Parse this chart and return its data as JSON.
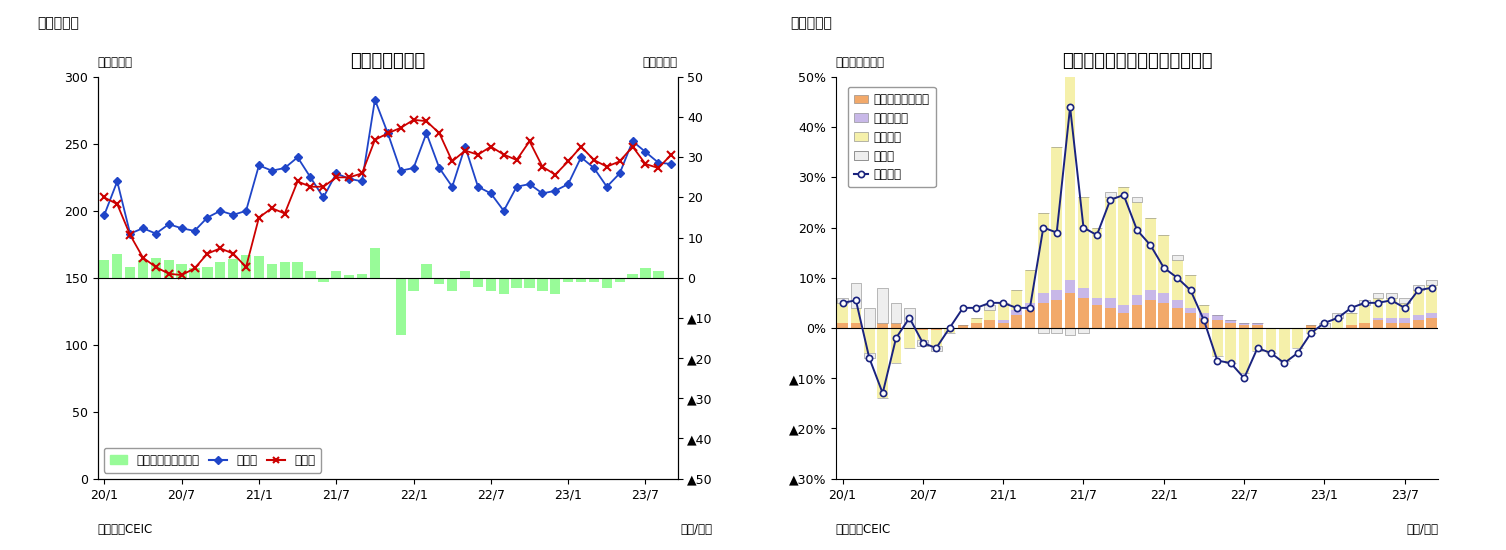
{
  "fig5_title": "タイの貿易収支",
  "fig5_label": "（図表５）",
  "fig5_ylabel_left": "（億ドル）",
  "fig5_ylabel_right": "（億ドル）",
  "fig5_source": "（資料）CEIC",
  "fig5_xlabel": "（年/月）",
  "fig6_title": "タイ　輸出の伸び率（品目別）",
  "fig6_label": "（図表６）",
  "fig6_ylabel_left": "（前年同月比）",
  "fig6_source": "（資料）CEIC",
  "fig6_xlabel": "（年/月）",
  "x_labels": [
    "20/1",
    "20/7",
    "21/1",
    "21/7",
    "22/1",
    "22/7",
    "23/1",
    "23/7"
  ],
  "x_tick_positions": [
    0,
    6,
    12,
    18,
    24,
    30,
    36,
    42
  ],
  "export_values": [
    197,
    222,
    183,
    187,
    183,
    190,
    187,
    185,
    195,
    200,
    197,
    200,
    234,
    230,
    232,
    240,
    225,
    210,
    228,
    224,
    222,
    283,
    258,
    230,
    232,
    258,
    232,
    218,
    248,
    218,
    213,
    200,
    218,
    220,
    213,
    215,
    220,
    240,
    232,
    218,
    228,
    252,
    244,
    236,
    235
  ],
  "import_values": [
    210,
    205,
    182,
    165,
    158,
    153,
    152,
    157,
    168,
    172,
    168,
    158,
    195,
    202,
    198,
    222,
    218,
    218,
    225,
    225,
    228,
    253,
    258,
    262,
    268,
    267,
    258,
    237,
    245,
    242,
    248,
    242,
    238,
    252,
    233,
    227,
    237,
    248,
    238,
    233,
    237,
    248,
    235,
    232,
    242
  ],
  "trade_balance_bars": [
    13,
    18,
    8,
    13,
    15,
    13,
    10,
    7,
    8,
    12,
    14,
    17,
    16,
    10,
    12,
    12,
    5,
    -3,
    5,
    2,
    3,
    22,
    0,
    -43,
    -10,
    10,
    -5,
    -10,
    5,
    -7,
    -10,
    -12,
    -8,
    -8,
    -10,
    -12,
    -3,
    -3,
    -3,
    -8,
    -3,
    3,
    7,
    5,
    0
  ],
  "agriculture": [
    0.01,
    0.01,
    0.0,
    0.01,
    0.01,
    0.0,
    -0.005,
    -0.005,
    0.0,
    0.005,
    0.01,
    0.015,
    0.01,
    0.025,
    0.035,
    0.05,
    0.055,
    0.07,
    0.06,
    0.045,
    0.04,
    0.03,
    0.045,
    0.055,
    0.05,
    0.04,
    0.03,
    0.02,
    0.015,
    0.01,
    0.005,
    0.005,
    0.0,
    0.0,
    0.0,
    0.005,
    0.0,
    0.0,
    0.005,
    0.01,
    0.015,
    0.01,
    0.01,
    0.015,
    0.02
  ],
  "mining": [
    0.0,
    0.0,
    0.0,
    0.0,
    0.0,
    0.0,
    0.0,
    0.0,
    0.0,
    0.0,
    0.0,
    0.0,
    0.005,
    0.01,
    0.015,
    0.02,
    0.02,
    0.025,
    0.02,
    0.015,
    0.02,
    0.015,
    0.02,
    0.02,
    0.02,
    0.015,
    0.01,
    0.01,
    0.01,
    0.005,
    0.005,
    0.005,
    0.0,
    0.0,
    0.0,
    0.0,
    0.0,
    0.0,
    0.0,
    0.0,
    0.005,
    0.01,
    0.01,
    0.01,
    0.01
  ],
  "industrial": [
    0.04,
    0.03,
    -0.05,
    -0.14,
    -0.07,
    -0.04,
    -0.02,
    -0.03,
    -0.01,
    0.0,
    0.01,
    0.02,
    0.035,
    0.04,
    0.065,
    0.16,
    0.285,
    0.42,
    0.18,
    0.14,
    0.2,
    0.235,
    0.185,
    0.145,
    0.115,
    0.08,
    0.065,
    0.015,
    -0.055,
    -0.07,
    -0.09,
    -0.045,
    -0.05,
    -0.065,
    -0.04,
    -0.01,
    0.0,
    0.02,
    0.025,
    0.035,
    0.04,
    0.04,
    0.03,
    0.05,
    0.055
  ],
  "other_pos": [
    0.01,
    0.05,
    0.04,
    0.07,
    0.04,
    0.04,
    0.0,
    0.0,
    0.0,
    0.0,
    0.0,
    0.01,
    0.0,
    0.0,
    0.0,
    0.0,
    0.0,
    0.0,
    0.0,
    0.0,
    0.01,
    0.0,
    0.01,
    0.0,
    0.0,
    0.01,
    0.0,
    0.0,
    0.0,
    0.0,
    0.0,
    0.0,
    0.0,
    0.0,
    0.0,
    0.0,
    0.01,
    0.01,
    0.0,
    0.01,
    0.01,
    0.01,
    0.01,
    0.01,
    0.01
  ],
  "other_neg": [
    0.0,
    0.0,
    -0.01,
    0.0,
    0.0,
    0.0,
    -0.01,
    -0.01,
    0.0,
    0.0,
    0.0,
    0.0,
    0.0,
    0.0,
    0.0,
    -0.01,
    -0.01,
    -0.015,
    -0.01,
    0.0,
    0.0,
    0.0,
    0.0,
    0.0,
    0.0,
    0.0,
    0.0,
    0.0,
    0.0,
    0.0,
    0.0,
    0.0,
    0.0,
    0.0,
    0.0,
    0.0,
    0.0,
    0.0,
    0.0,
    0.0,
    0.0,
    0.0,
    0.0,
    0.0,
    0.0
  ],
  "total_export": [
    0.05,
    0.055,
    -0.06,
    -0.13,
    -0.02,
    0.02,
    -0.03,
    -0.04,
    0.0,
    0.04,
    0.04,
    0.05,
    0.05,
    0.04,
    0.04,
    0.2,
    0.19,
    0.44,
    0.2,
    0.185,
    0.255,
    0.265,
    0.195,
    0.165,
    0.12,
    0.1,
    0.075,
    0.015,
    -0.065,
    -0.07,
    -0.1,
    -0.04,
    -0.05,
    -0.07,
    -0.05,
    -0.01,
    0.01,
    0.02,
    0.04,
    0.05,
    0.05,
    0.055,
    0.04,
    0.075,
    0.08
  ],
  "bar_color_green": "#98FB98",
  "line_color_blue": "#1F45C8",
  "line_color_red": "#CC0000",
  "agri_color": "#F2A96A",
  "mining_color": "#C8B8E8",
  "industrial_color": "#F5F0AA",
  "other_color": "#EEEEEE",
  "total_line_color": "#1A237E"
}
